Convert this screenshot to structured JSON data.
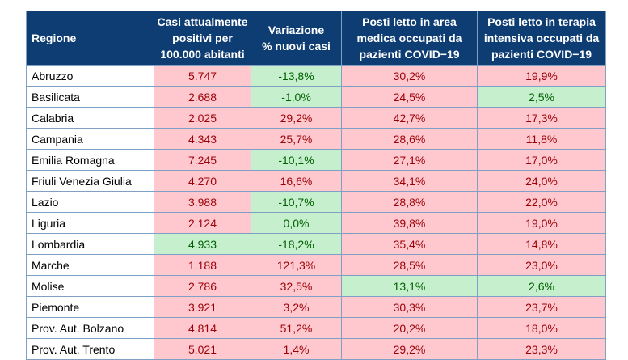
{
  "colors": {
    "header": "#0d3d73",
    "bad_bg": "#ffc7ce",
    "bad_text": "#9c0006",
    "good_bg": "#c6efce",
    "good_text": "#006100"
  },
  "headers": [
    "Regione",
    "Casi attualmente\npositivi per\n100.000 abitanti",
    "Variazione\n% nuovi casi",
    "Posti letto in area\nmedica occupati da\npazienti COVID−19",
    "Posti letto in terapia\nintensiva occupati da\npazienti COVID−19"
  ],
  "rows": [
    {
      "region": "Abruzzo",
      "cells": [
        [
          "5.747",
          "bad"
        ],
        [
          "-13,8%",
          "good"
        ],
        [
          "30,2%",
          "bad"
        ],
        [
          "19,9%",
          "bad"
        ]
      ]
    },
    {
      "region": "Basilicata",
      "cells": [
        [
          "2.688",
          "bad"
        ],
        [
          "-1,0%",
          "good"
        ],
        [
          "24,5%",
          "bad"
        ],
        [
          "2,5%",
          "good"
        ]
      ]
    },
    {
      "region": "Calabria",
      "cells": [
        [
          "2.025",
          "bad"
        ],
        [
          "29,2%",
          "bad"
        ],
        [
          "42,7%",
          "bad"
        ],
        [
          "17,3%",
          "bad"
        ]
      ]
    },
    {
      "region": "Campania",
      "cells": [
        [
          "4.343",
          "bad"
        ],
        [
          "25,7%",
          "bad"
        ],
        [
          "28,6%",
          "bad"
        ],
        [
          "11,8%",
          "bad"
        ]
      ]
    },
    {
      "region": "Emilia Romagna",
      "cells": [
        [
          "7.245",
          "bad"
        ],
        [
          "-10,1%",
          "good"
        ],
        [
          "27,1%",
          "bad"
        ],
        [
          "17,0%",
          "bad"
        ]
      ]
    },
    {
      "region": "Friuli Venezia Giulia",
      "cells": [
        [
          "4.270",
          "bad"
        ],
        [
          "16,6%",
          "bad"
        ],
        [
          "34,1%",
          "bad"
        ],
        [
          "24,0%",
          "bad"
        ]
      ]
    },
    {
      "region": "Lazio",
      "cells": [
        [
          "3.988",
          "bad"
        ],
        [
          "-10,7%",
          "good"
        ],
        [
          "28,8%",
          "bad"
        ],
        [
          "22,0%",
          "bad"
        ]
      ]
    },
    {
      "region": "Liguria",
      "cells": [
        [
          "2.124",
          "bad"
        ],
        [
          "0,0%",
          "good"
        ],
        [
          "39,8%",
          "bad"
        ],
        [
          "19,0%",
          "bad"
        ]
      ]
    },
    {
      "region": "Lombardia",
      "cells": [
        [
          "4.933",
          "good"
        ],
        [
          "-18,2%",
          "good"
        ],
        [
          "35,4%",
          "bad"
        ],
        [
          "14,8%",
          "bad"
        ]
      ]
    },
    {
      "region": "Marche",
      "cells": [
        [
          "1.188",
          "bad"
        ],
        [
          "121,3%",
          "bad"
        ],
        [
          "28,5%",
          "bad"
        ],
        [
          "23,0%",
          "bad"
        ]
      ]
    },
    {
      "region": "Molise",
      "cells": [
        [
          "2.786",
          "bad"
        ],
        [
          "32,5%",
          "bad"
        ],
        [
          "13,1%",
          "good"
        ],
        [
          "2,6%",
          "good"
        ]
      ]
    },
    {
      "region": "Piemonte",
      "cells": [
        [
          "3.921",
          "bad"
        ],
        [
          "3,2%",
          "bad"
        ],
        [
          "30,3%",
          "bad"
        ],
        [
          "23,7%",
          "bad"
        ]
      ]
    },
    {
      "region": "Prov. Aut. Bolzano",
      "cells": [
        [
          "4.814",
          "bad"
        ],
        [
          "51,2%",
          "bad"
        ],
        [
          "20,2%",
          "bad"
        ],
        [
          "18,0%",
          "bad"
        ]
      ]
    },
    {
      "region": "Prov. Aut. Trento",
      "cells": [
        [
          "5.021",
          "bad"
        ],
        [
          "1,4%",
          "bad"
        ],
        [
          "29,2%",
          "bad"
        ],
        [
          "23,3%",
          "bad"
        ]
      ]
    }
  ]
}
